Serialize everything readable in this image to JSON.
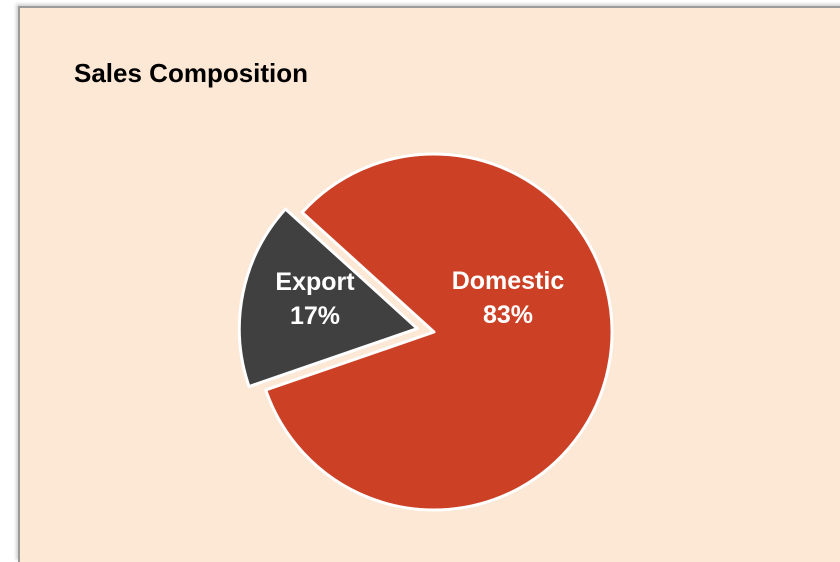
{
  "chart_data": {
    "type": "pie",
    "title": "Sales Composition",
    "categories": [
      "Export",
      "Domestic"
    ],
    "values": [
      17,
      83
    ],
    "labels": [
      {
        "name": "Export",
        "percent": "17%"
      },
      {
        "name": "Domestic",
        "percent": "83%"
      }
    ],
    "exploded": [
      "Export"
    ],
    "legend": "none",
    "colors": {
      "Export": "#404040",
      "Domestic": "#cc4125",
      "background": "#fde7d5",
      "slice_border": "#ffffff"
    }
  }
}
